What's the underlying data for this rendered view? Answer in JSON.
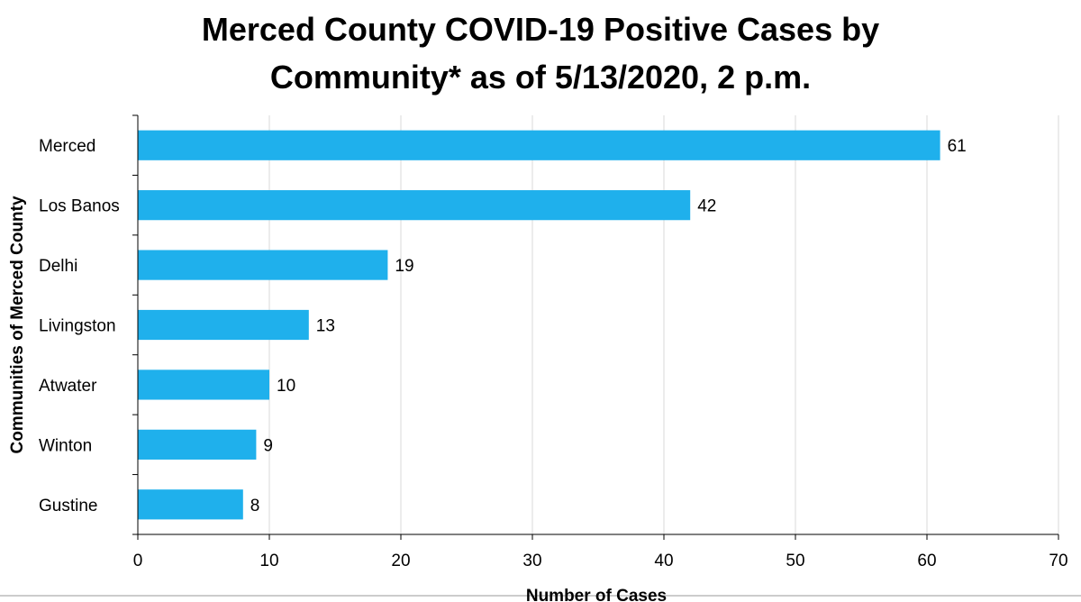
{
  "chart_data": {
    "type": "bar",
    "orientation": "horizontal",
    "title": [
      "Merced County COVID-19 Positive Cases by",
      "Community* as of 5/13/2020, 2 p.m."
    ],
    "xlabel": "Number of Cases",
    "ylabel": "Communities of Merced County",
    "categories": [
      "Merced",
      "Los Banos",
      "Delhi",
      "Livingston",
      "Atwater",
      "Winton",
      "Gustine"
    ],
    "values": [
      61,
      42,
      19,
      13,
      10,
      9,
      8
    ],
    "xlim": [
      0,
      70
    ],
    "xticks": [
      0,
      10,
      20,
      30,
      40,
      50,
      60,
      70
    ],
    "grid": "vertical",
    "legend": "none",
    "colors": {
      "bar": "#1fb0ec",
      "grid": "#d9d9d9",
      "axis": "#000000"
    }
  }
}
